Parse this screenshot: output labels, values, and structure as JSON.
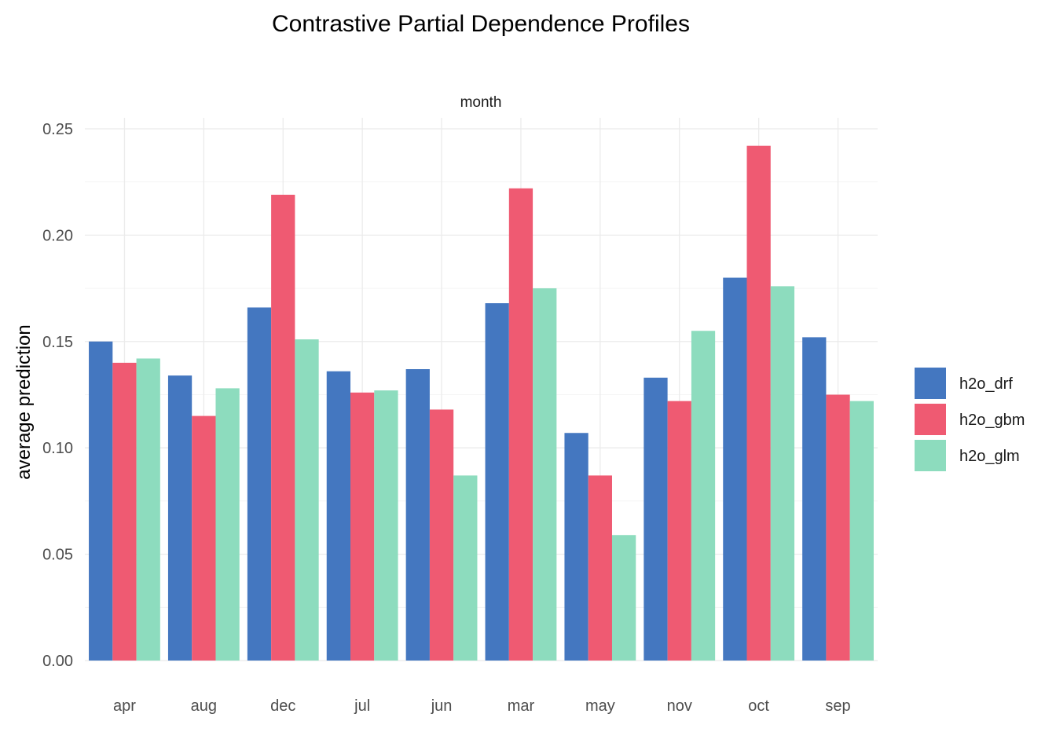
{
  "chart_data": {
    "type": "bar",
    "title": "Contrastive Partial Dependence Profiles",
    "facet_label": "month",
    "xlabel": "",
    "ylabel": "average prediction",
    "categories": [
      "apr",
      "aug",
      "dec",
      "jul",
      "jun",
      "mar",
      "may",
      "nov",
      "oct",
      "sep"
    ],
    "series": [
      {
        "name": "h2o_drf",
        "color": "#4477C0",
        "values": [
          0.15,
          0.134,
          0.166,
          0.136,
          0.137,
          0.168,
          0.107,
          0.133,
          0.18,
          0.152
        ]
      },
      {
        "name": "h2o_gbm",
        "color": "#EF5A72",
        "values": [
          0.14,
          0.115,
          0.219,
          0.126,
          0.118,
          0.222,
          0.087,
          0.122,
          0.242,
          0.125
        ]
      },
      {
        "name": "h2o_glm",
        "color": "#8DDCBE",
        "values": [
          0.142,
          0.128,
          0.151,
          0.127,
          0.087,
          0.175,
          0.059,
          0.155,
          0.176,
          0.122
        ]
      }
    ],
    "ylim": [
      0,
      0.25
    ],
    "yticks": [
      "0.00",
      "0.05",
      "0.10",
      "0.15",
      "0.20",
      "0.25"
    ],
    "grid": true,
    "legend": "right"
  }
}
